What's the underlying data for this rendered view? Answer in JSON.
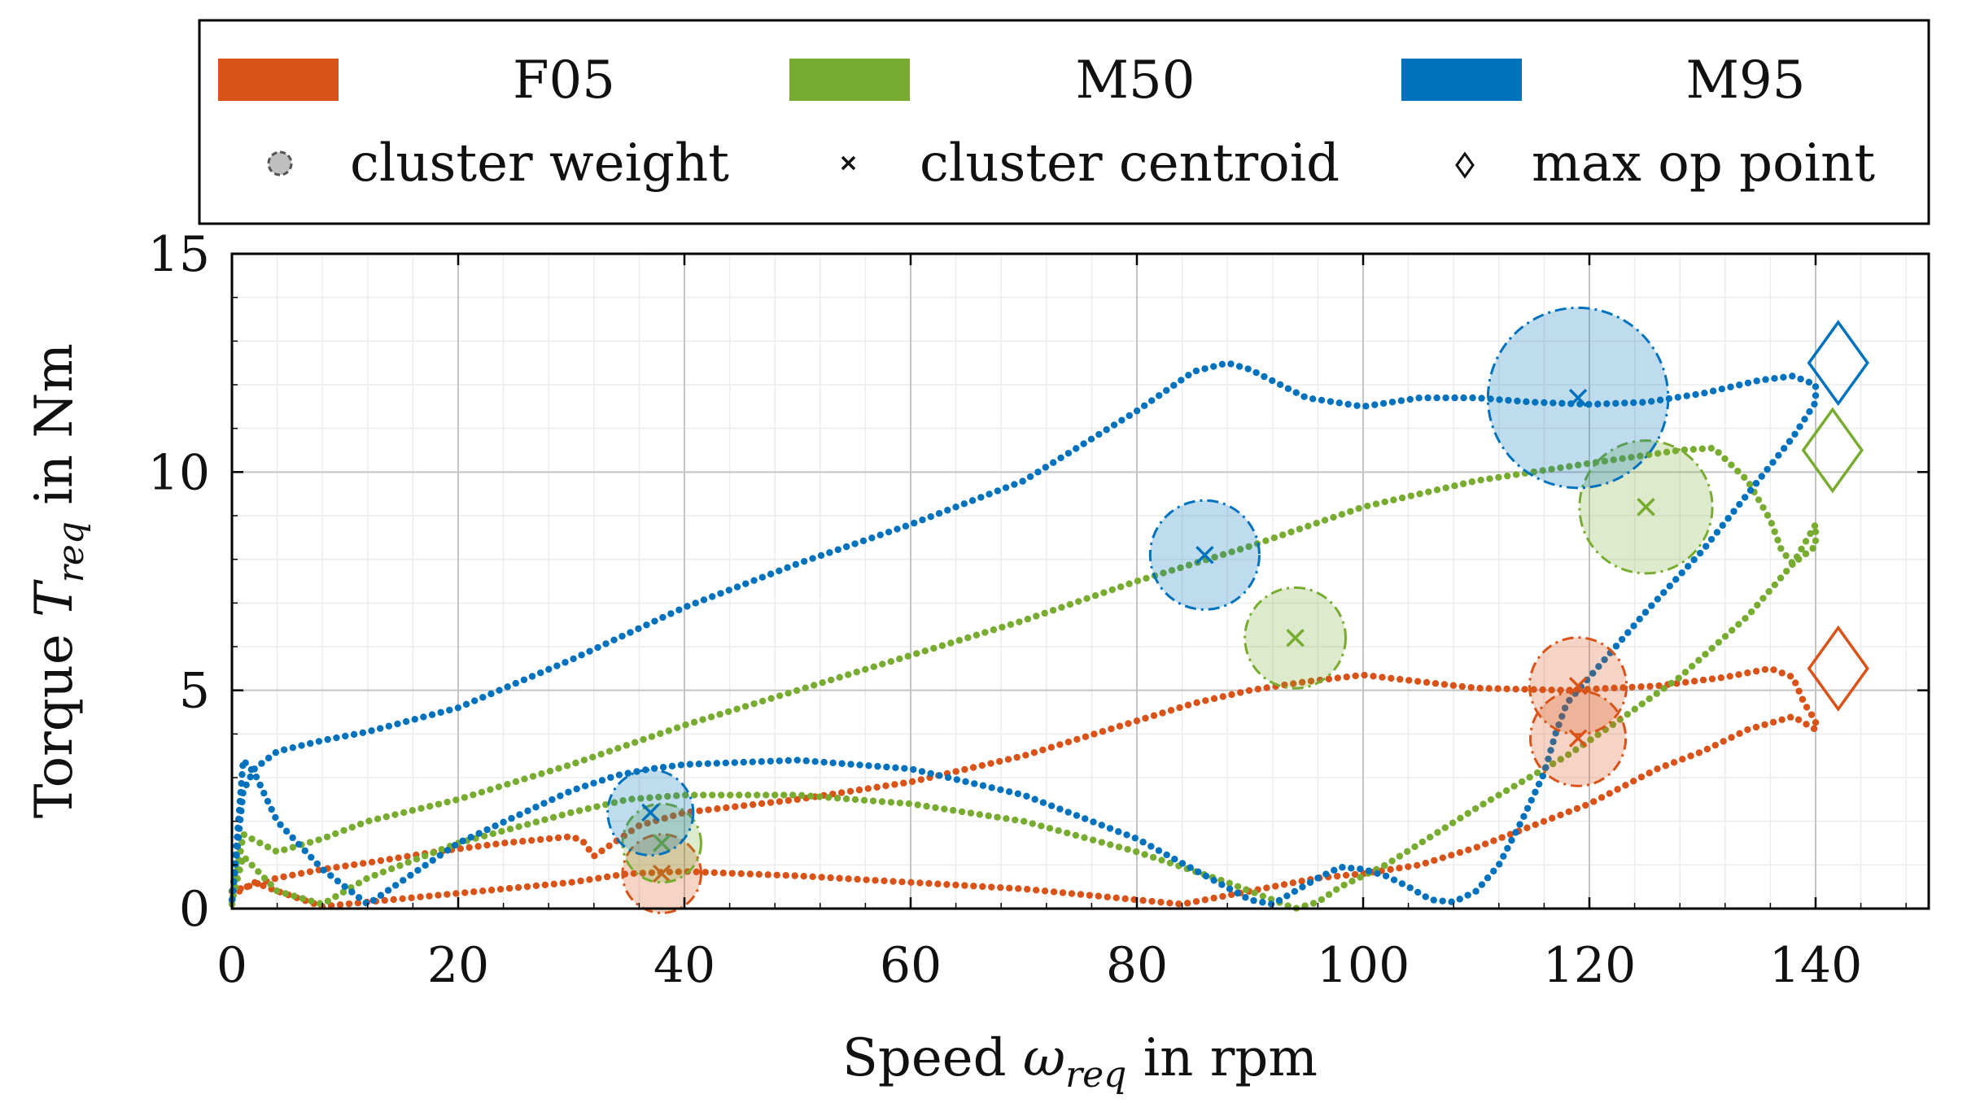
{
  "chart_data": {
    "type": "scatter",
    "xlabel": "Speed ω_req in rpm",
    "ylabel": "Torque T_req in Nm",
    "xlabel_parts": {
      "pre": "Speed ",
      "sym": "ω",
      "sub": "req",
      "post": " in rpm"
    },
    "ylabel_parts": {
      "pre": "Torque ",
      "sym": "T",
      "sub": "req",
      "post": " in Nm"
    },
    "xlim": [
      0,
      150
    ],
    "ylim": [
      0,
      15
    ],
    "xticks": [
      0,
      20,
      40,
      60,
      80,
      100,
      120,
      140
    ],
    "yticks": [
      0,
      5,
      10,
      15
    ],
    "xtick_labels": [
      "0",
      "20",
      "40",
      "60",
      "80",
      "100",
      "120",
      "140"
    ],
    "ytick_labels": [
      "0",
      "5",
      "10",
      "15"
    ],
    "grid": true,
    "minor_grid": true,
    "legend_position": "top",
    "legend": {
      "series": [
        "F05",
        "M50",
        "M95"
      ],
      "markers": [
        "cluster weight",
        "cluster centroid",
        "max op point"
      ]
    },
    "colors": {
      "F05": "#d95319",
      "M50": "#77ac30",
      "M95": "#0072bd"
    },
    "series": [
      {
        "name": "F05",
        "trajectory_x": [
          0,
          4,
          8,
          12,
          18,
          24,
          30,
          31,
          32,
          36,
          40,
          50,
          60,
          70,
          80,
          85,
          90,
          95,
          100,
          105,
          110,
          118,
          126,
          132,
          136,
          138,
          139,
          140,
          140,
          138,
          134,
          130,
          126,
          120,
          114,
          110,
          105,
          100,
          96,
          92,
          88,
          84,
          80,
          70,
          60,
          50,
          40,
          35,
          30,
          20,
          12,
          8,
          4,
          2,
          0
        ],
        "trajectory_y": [
          0.4,
          0.7,
          0.9,
          1.05,
          1.3,
          1.5,
          1.65,
          1.55,
          1.2,
          1.9,
          2.2,
          2.5,
          2.9,
          3.5,
          4.3,
          4.7,
          5.0,
          5.2,
          5.35,
          5.2,
          5.05,
          5.0,
          5.1,
          5.3,
          5.5,
          5.3,
          4.7,
          4.3,
          4.1,
          4.4,
          4.1,
          3.6,
          3.2,
          2.4,
          1.8,
          1.4,
          1.0,
          0.8,
          0.7,
          0.5,
          0.3,
          0.1,
          0.2,
          0.45,
          0.6,
          0.75,
          0.85,
          0.8,
          0.6,
          0.35,
          0.15,
          0.05,
          0.4,
          0.6,
          0.3
        ],
        "clusters": [
          {
            "x": 38,
            "y": 0.8,
            "weight": 0.05
          },
          {
            "x": 119,
            "y": 5.1,
            "weight": 0.22
          },
          {
            "x": 119,
            "y": 3.9,
            "weight": 0.2
          }
        ],
        "max_op_point": {
          "x": 142,
          "y": 5.5
        }
      },
      {
        "name": "M50",
        "trajectory_x": [
          0,
          1,
          4,
          8,
          12,
          20,
          30,
          40,
          50,
          60,
          70,
          80,
          90,
          100,
          110,
          120,
          128,
          131,
          132,
          134,
          136,
          137,
          138,
          140,
          140,
          138,
          134,
          128,
          122,
          118,
          110,
          102,
          98,
          96,
          94,
          92,
          88,
          80,
          70,
          60,
          50,
          40,
          35,
          30,
          20,
          12,
          8,
          4,
          1,
          0
        ],
        "trajectory_y": [
          0.1,
          1.7,
          1.3,
          1.6,
          2.0,
          2.5,
          3.3,
          4.2,
          5.0,
          5.8,
          6.6,
          7.5,
          8.3,
          9.2,
          9.8,
          10.2,
          10.5,
          10.55,
          10.3,
          9.8,
          8.9,
          8.2,
          7.9,
          8.3,
          8.8,
          7.9,
          6.7,
          5.3,
          4.2,
          3.5,
          2.3,
          1.0,
          0.5,
          0.15,
          0.0,
          0.2,
          0.6,
          1.3,
          2.0,
          2.4,
          2.6,
          2.6,
          2.5,
          2.2,
          1.5,
          0.7,
          0.1,
          0.4,
          1.2,
          0.2
        ],
        "clusters": [
          {
            "x": 38,
            "y": 1.5,
            "weight": 0.05
          },
          {
            "x": 94,
            "y": 6.2,
            "weight": 0.27
          },
          {
            "x": 125,
            "y": 9.2,
            "weight": 0.9
          }
        ],
        "max_op_point": {
          "x": 141.5,
          "y": 10.5
        }
      },
      {
        "name": "M95",
        "trajectory_x": [
          0,
          1,
          2,
          4,
          8,
          12,
          20,
          30,
          40,
          50,
          60,
          70,
          80,
          85,
          88,
          90,
          95,
          100,
          105,
          110,
          115,
          120,
          125,
          130,
          135,
          138,
          140,
          140,
          138,
          134,
          130,
          125,
          120,
          118,
          117,
          116,
          114,
          112,
          110,
          108,
          106,
          104,
          102,
          100,
          98,
          96,
          94,
          92,
          90,
          85,
          80,
          70,
          60,
          50,
          40,
          37,
          34,
          30,
          20,
          12,
          8,
          4,
          2,
          1,
          0
        ],
        "trajectory_y": [
          0.2,
          2.7,
          3.2,
          3.6,
          3.85,
          4.05,
          4.6,
          5.7,
          6.9,
          7.9,
          8.8,
          9.8,
          11.4,
          12.3,
          12.5,
          12.35,
          11.7,
          11.5,
          11.7,
          11.7,
          11.6,
          11.55,
          11.6,
          11.8,
          12.1,
          12.2,
          12.0,
          11.6,
          10.8,
          9.5,
          8.2,
          6.8,
          5.3,
          4.7,
          4.0,
          3.1,
          2.0,
          1.0,
          0.4,
          0.15,
          0.2,
          0.5,
          0.75,
          0.9,
          0.95,
          0.7,
          0.4,
          0.1,
          0.2,
          0.9,
          1.6,
          2.6,
          3.2,
          3.4,
          3.3,
          3.2,
          3.05,
          2.7,
          1.5,
          0.1,
          0.9,
          2.0,
          3.1,
          3.4,
          0.1
        ],
        "clusters": [
          {
            "x": 37,
            "y": 2.2,
            "weight": 0.1
          },
          {
            "x": 86,
            "y": 8.1,
            "weight": 0.4
          },
          {
            "x": 119,
            "y": 11.7,
            "weight": 2.5
          }
        ],
        "max_op_point": {
          "x": 142,
          "y": 12.5
        }
      }
    ]
  }
}
